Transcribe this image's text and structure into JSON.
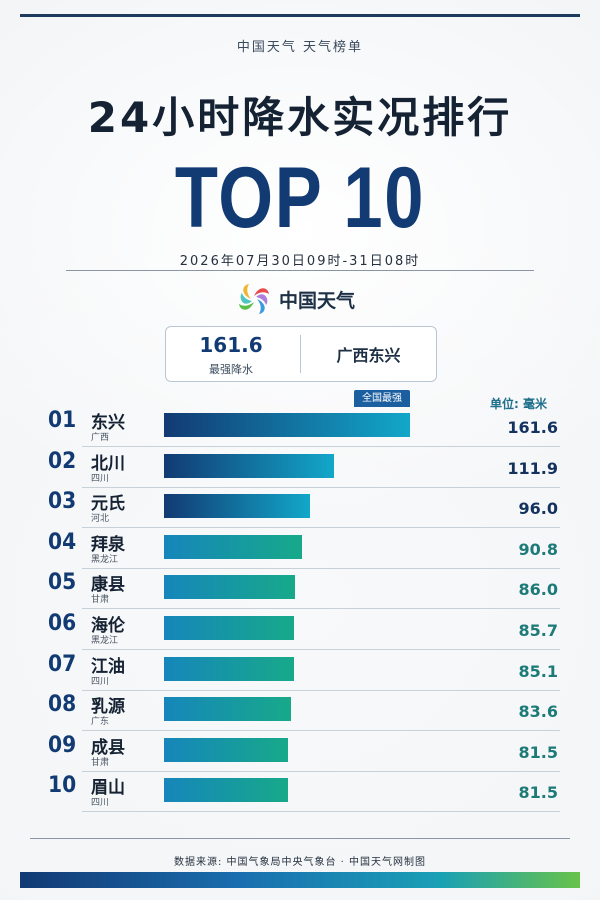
{
  "header": {
    "brand_line": "中国天气 天气榜单",
    "title": "24小时降水实况排行",
    "top_label": "TOP 10",
    "date_range": "2026年07月30日09时-31日08时"
  },
  "logo": {
    "text": "中国天气",
    "icon": "china-weather-logo-icon"
  },
  "stat": {
    "value": "161.6",
    "label": "最强降水",
    "place": "广西东兴"
  },
  "badge": "全国最强",
  "unit_label": "单位: 毫米",
  "colors": {
    "navy": "#123a73",
    "bar_blue_start": "#123a73",
    "bar_blue_end": "#12a7c9",
    "bar_teal_start": "#1686bb",
    "bar_teal_end": "#17a98a",
    "value_teal": "#1c7a78"
  },
  "chart_data": {
    "type": "bar",
    "orientation": "horizontal",
    "title": "24小时降水实况排行",
    "unit": "毫米",
    "categories": [
      "东兴",
      "北川",
      "元氏",
      "拜泉",
      "康县",
      "海伦",
      "江油",
      "乳源",
      "成县",
      "眉山"
    ],
    "ranks": [
      "01",
      "02",
      "03",
      "04",
      "05",
      "06",
      "07",
      "08",
      "09",
      "10"
    ],
    "provinces": [
      "广西",
      "四川",
      "河北",
      "黑龙江",
      "甘肃",
      "黑龙江",
      "四川",
      "广东",
      "甘肃",
      "四川"
    ],
    "values": [
      161.6,
      111.9,
      96.0,
      90.8,
      86.0,
      85.7,
      85.1,
      83.6,
      81.5,
      81.5
    ],
    "value_labels": [
      "161.6",
      "111.9",
      "96.0",
      "90.8",
      "86.0",
      "85.7",
      "85.1",
      "83.6",
      "81.5",
      "81.5"
    ],
    "xlim": [
      0,
      161.6
    ]
  },
  "footer": {
    "source": "数据来源: 中国气象局中央气象台 · 中国天气网制图"
  }
}
